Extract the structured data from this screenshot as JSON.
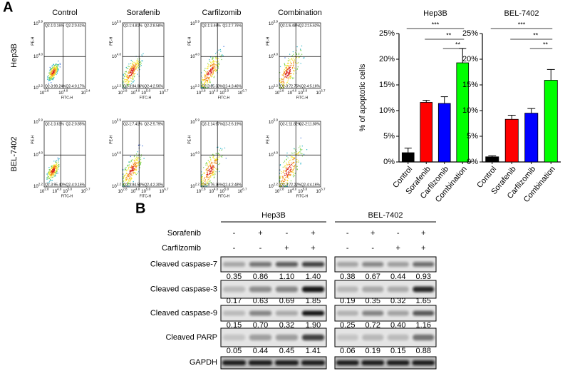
{
  "panel_labels": [
    "A",
    "B"
  ],
  "flow": {
    "columns": [
      "Control",
      "Sorafenib",
      "Carfilzomib",
      "Combination"
    ],
    "rows": [
      "Hep3B",
      "BEL-7402"
    ],
    "x_label": "FITC-H",
    "y_label": "PE-H",
    "y_ticks": [
      {
        "base": "10",
        "exp": "5.9"
      },
      {
        "base": "10",
        "exp": "4.0"
      },
      {
        "base": "10",
        "exp": "2.2"
      }
    ],
    "plots": [
      {
        "x_ticks": [
          {
            "base": "10",
            "exp": "2.8"
          },
          {
            "base": "10",
            "exp": "4.0"
          },
          {
            "base": "10",
            "exp": "5.4"
          }
        ],
        "quadrants": [
          "Q2-1:0.16%",
          "Q2-2:0.41%",
          "Q2-3:99.24%",
          "Q2-4:0.17%"
        ]
      },
      {
        "x_ticks": [
          {
            "base": "10",
            "exp": "2.8"
          },
          {
            "base": "10",
            "exp": "4.0"
          },
          {
            "base": "10",
            "exp": "5.0"
          },
          {
            "base": "10",
            "exp": "6.7"
          }
        ],
        "quadrants": [
          "Q2-1:4.81%",
          "Q2-2:8.58%",
          "Q2-3:84.06%",
          "Q2-4:2.56%"
        ]
      },
      {
        "x_ticks": [
          {
            "base": "10",
            "exp": "2.8"
          },
          {
            "base": "10",
            "exp": "4.0"
          },
          {
            "base": "10",
            "exp": "5.0"
          },
          {
            "base": "10",
            "exp": "6.7"
          }
        ],
        "quadrants": [
          "Q2-1:3.46%",
          "Q2-2:7.76%",
          "Q2-3:85.33%",
          "Q2-4:3.46%"
        ]
      },
      {
        "x_ticks": [
          {
            "base": "10",
            "exp": "2.8"
          },
          {
            "base": "10",
            "exp": "4.0"
          },
          {
            "base": "10",
            "exp": "5.0"
          },
          {
            "base": "10",
            "exp": "6.7"
          }
        ],
        "quadrants": [
          "Q2-1:6.48%",
          "Q2-2:15.62%",
          "Q2-3:72.75%",
          "Q2-4:5.16%"
        ]
      },
      {
        "x_ticks": [
          {
            "base": "10",
            "exp": "2.8"
          },
          {
            "base": "10",
            "exp": "4.0"
          },
          {
            "base": "10",
            "exp": "5.0"
          },
          {
            "base": "10",
            "exp": "6.7"
          }
        ],
        "quadrants": [
          "Q2-1:3.61%",
          "Q2-2:0.85%",
          "Q2-3:95.40%",
          "Q2-4:0.15%"
        ]
      },
      {
        "x_ticks": [
          {
            "base": "10",
            "exp": "2.8"
          },
          {
            "base": "10",
            "exp": "4.0"
          },
          {
            "base": "10",
            "exp": "5.0"
          },
          {
            "base": "10",
            "exp": "6.7"
          }
        ],
        "quadrants": [
          "Q2-1:7.41%",
          "Q2-2:5.79%",
          "Q2-3:84.50%",
          "Q2-4:2.30%"
        ]
      },
      {
        "x_ticks": [
          {
            "base": "10",
            "exp": "2.8"
          },
          {
            "base": "10",
            "exp": "4.0"
          },
          {
            "base": "10",
            "exp": "5.0"
          },
          {
            "base": "10",
            "exp": "6.7"
          }
        ],
        "quadrants": [
          "Q2-1:14.97%",
          "Q2-2:6.19%",
          "Q2-3:76.36%",
          "Q2-4:2.48%"
        ]
      },
      {
        "x_ticks": [
          {
            "base": "10",
            "exp": "2.8"
          },
          {
            "base": "10",
            "exp": "4.0"
          },
          {
            "base": "10",
            "exp": "5.0"
          },
          {
            "base": "10",
            "exp": "6.7"
          }
        ],
        "quadrants": [
          "Q2-1:11.82%",
          "Q2-2:11.80%",
          "Q2-3:72.22%",
          "Q2-4:4.16%"
        ]
      }
    ]
  },
  "chart_data": [
    {
      "type": "bar",
      "title": "Hep3B",
      "y_label": "% of apoptotic cells",
      "categories": [
        "Control",
        "Sorafenib",
        "Carfilzomib",
        "Combination"
      ],
      "values": [
        1.8,
        11.6,
        11.4,
        19.3
      ],
      "errors": [
        0.9,
        0.4,
        1.3,
        2.8
      ],
      "colors": [
        "#000000",
        "#ff0000",
        "#0000ff",
        "#00ff00"
      ],
      "ylim": [
        0,
        25
      ],
      "yticks": [
        {
          "value": 0,
          "label": "0%"
        },
        {
          "value": 5,
          "label": "5%"
        },
        {
          "value": 10,
          "label": "10%"
        },
        {
          "value": 15,
          "label": "15%"
        },
        {
          "value": 20,
          "label": "20%"
        },
        {
          "value": 25,
          "label": "25%"
        }
      ],
      "annotations": [
        "***",
        "**",
        "**"
      ]
    },
    {
      "type": "bar",
      "title": "BEL-7402",
      "categories": [
        "Control",
        "Sorafenib",
        "Carfilzomib",
        "Combination"
      ],
      "values": [
        1.0,
        8.3,
        9.5,
        15.9
      ],
      "errors": [
        0.2,
        0.8,
        0.9,
        2.1
      ],
      "colors": [
        "#000000",
        "#ff0000",
        "#0000ff",
        "#00ff00"
      ],
      "ylim": [
        0,
        25
      ],
      "yticks": [
        {
          "value": 0,
          "label": "0%"
        },
        {
          "value": 5,
          "label": "5%"
        },
        {
          "value": 10,
          "label": "10%"
        },
        {
          "value": 15,
          "label": "15%"
        },
        {
          "value": 20,
          "label": "20%"
        },
        {
          "value": 25,
          "label": "25%"
        }
      ],
      "annotations": [
        "***",
        "**",
        "**"
      ]
    }
  ],
  "blot": {
    "groups": [
      "Hep3B",
      "BEL-7402"
    ],
    "treatments": [
      {
        "name": "Sorafenib",
        "signs": [
          "-",
          "+",
          "-",
          "+"
        ]
      },
      {
        "name": "Carfilzomib",
        "signs": [
          "-",
          "-",
          "+",
          "+"
        ]
      }
    ],
    "rows": [
      {
        "label": "Cleaved caspase-7",
        "values": [
          [
            "0.35",
            "0.86",
            "1.10",
            "1.40"
          ],
          [
            "0.38",
            "0.67",
            "0.44",
            "0.93"
          ]
        ]
      },
      {
        "label": "Cleaved caspase-3",
        "values": [
          [
            "0.17",
            "0.63",
            "0.69",
            "1.85"
          ],
          [
            "0.19",
            "0.35",
            "0.32",
            "1.65"
          ]
        ]
      },
      {
        "label": "Cleaved caspase-9",
        "values": [
          [
            "0.15",
            "0.70",
            "0.32",
            "1.90"
          ],
          [
            "0.25",
            "0.72",
            "0.40",
            "1.16"
          ]
        ]
      },
      {
        "label": "Cleaved PARP",
        "values": [
          [
            "0.05",
            "0.44",
            "0.45",
            "1.41"
          ],
          [
            "0.06",
            "0.19",
            "0.15",
            "0.88"
          ]
        ]
      }
    ],
    "loading_control": "GAPDH"
  }
}
